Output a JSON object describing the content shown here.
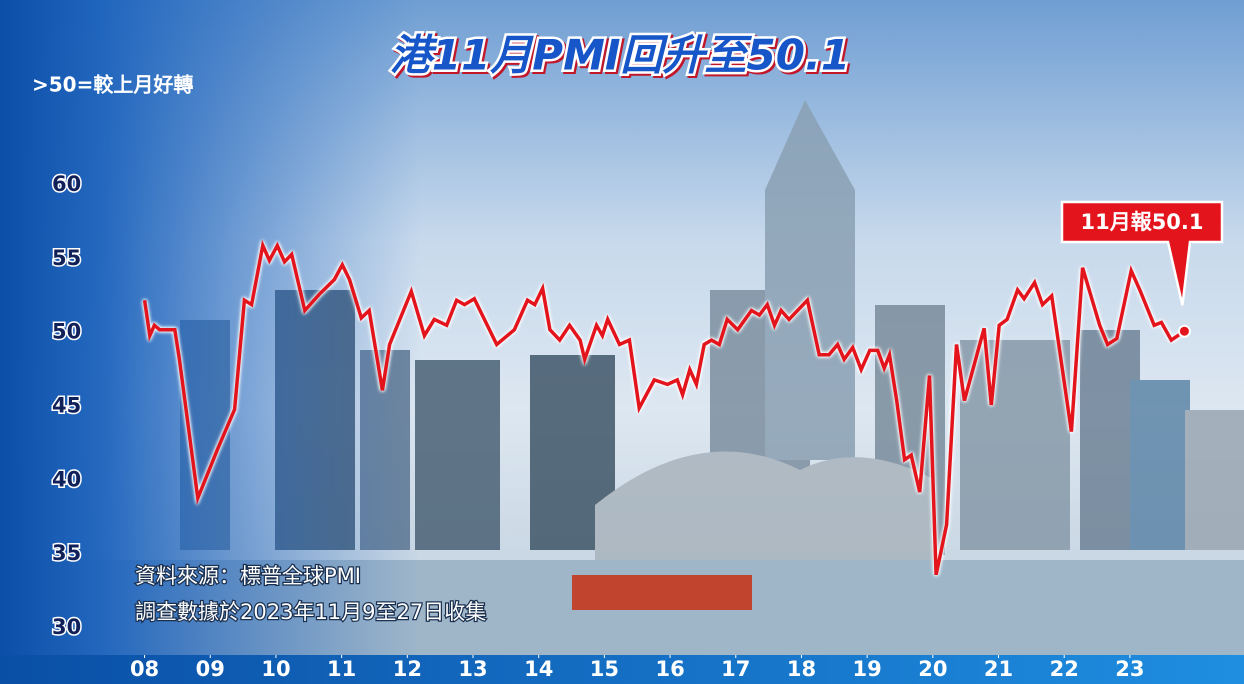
{
  "chart_data": {
    "type": "line",
    "title": "港11月PMI回升至50.1",
    "y_label": ">50=較上月好轉",
    "annotation": "11月報50.1",
    "source": [
      "資料來源：標普全球PMI",
      "調查數據於2023年11月9至27日收集"
    ],
    "x": [
      8.0,
      8.08,
      8.15,
      8.23,
      8.46,
      8.53,
      8.81,
      9.11,
      9.37,
      9.52,
      9.63,
      9.8,
      9.9,
      10.02,
      10.13,
      10.24,
      10.44,
      10.66,
      10.89,
      11.01,
      11.12,
      11.3,
      11.42,
      11.62,
      11.73,
      12.06,
      12.26,
      12.41,
      12.6,
      12.75,
      12.87,
      13.02,
      13.36,
      13.63,
      13.83,
      13.94,
      14.06,
      14.17,
      14.32,
      14.47,
      14.63,
      14.7,
      14.88,
      14.97,
      15.05,
      15.23,
      15.38,
      15.53,
      15.76,
      15.96,
      16.11,
      16.19,
      16.3,
      16.4,
      16.52,
      16.63,
      16.75,
      16.87,
      17.03,
      17.24,
      17.36,
      17.48,
      17.59,
      17.69,
      17.81,
      18.09,
      18.27,
      18.42,
      18.55,
      18.65,
      18.78,
      18.91,
      19.04,
      19.16,
      19.26,
      19.34,
      19.45,
      19.57,
      19.67,
      19.8,
      19.95,
      20.05,
      20.21,
      20.36,
      20.48,
      20.78,
      20.89,
      21.01,
      21.13,
      21.29,
      21.39,
      21.55,
      21.67,
      21.81,
      22.11,
      22.28,
      22.54,
      22.66,
      22.8,
      23.02,
      23.15,
      23.37,
      23.48,
      23.63,
      23.83
    ],
    "series": [
      {
        "color": "#e3141b",
        "values": [
          52.2,
          49.8,
          50.5,
          50.2,
          50.2,
          48.2,
          38.8,
          42.1,
          44.8,
          52.2,
          51.9,
          55.9,
          54.9,
          55.9,
          54.8,
          55.3,
          51.5,
          52.6,
          53.6,
          54.6,
          53.6,
          51.0,
          51.5,
          46.1,
          49.2,
          52.8,
          49.8,
          50.9,
          50.5,
          52.2,
          51.9,
          52.3,
          49.2,
          50.2,
          52.2,
          51.9,
          53.0,
          50.2,
          49.5,
          50.5,
          49.5,
          48.2,
          50.5,
          49.8,
          50.9,
          49.2,
          49.5,
          44.9,
          46.8,
          46.5,
          46.8,
          45.8,
          47.5,
          46.5,
          49.2,
          49.5,
          49.2,
          50.9,
          50.2,
          51.5,
          51.2,
          51.9,
          50.5,
          51.5,
          50.9,
          52.2,
          48.5,
          48.5,
          49.2,
          48.2,
          49.0,
          47.5,
          48.8,
          48.8,
          47.6,
          48.5,
          45.4,
          41.4,
          41.7,
          39.2,
          47.1,
          33.6,
          37.0,
          49.2,
          45.4,
          50.3,
          45.1,
          50.5,
          50.9,
          52.9,
          52.3,
          53.4,
          51.9,
          52.5,
          43.3,
          54.4,
          50.5,
          49.2,
          49.6,
          54.2,
          52.9,
          50.5,
          50.7,
          49.5,
          50.1
        ]
      }
    ],
    "xlim": [
      7.9,
      24.6
    ],
    "xticks": [
      {
        "value": 8,
        "label": "08"
      },
      {
        "value": 9,
        "label": "09"
      },
      10,
      11,
      12,
      13,
      14,
      15,
      16,
      17,
      18,
      19,
      20,
      21,
      22,
      23
    ],
    "ylim": [
      28,
      64
    ],
    "yticks": [
      30,
      35,
      40,
      45,
      50,
      55,
      60
    ],
    "grid": false
  }
}
